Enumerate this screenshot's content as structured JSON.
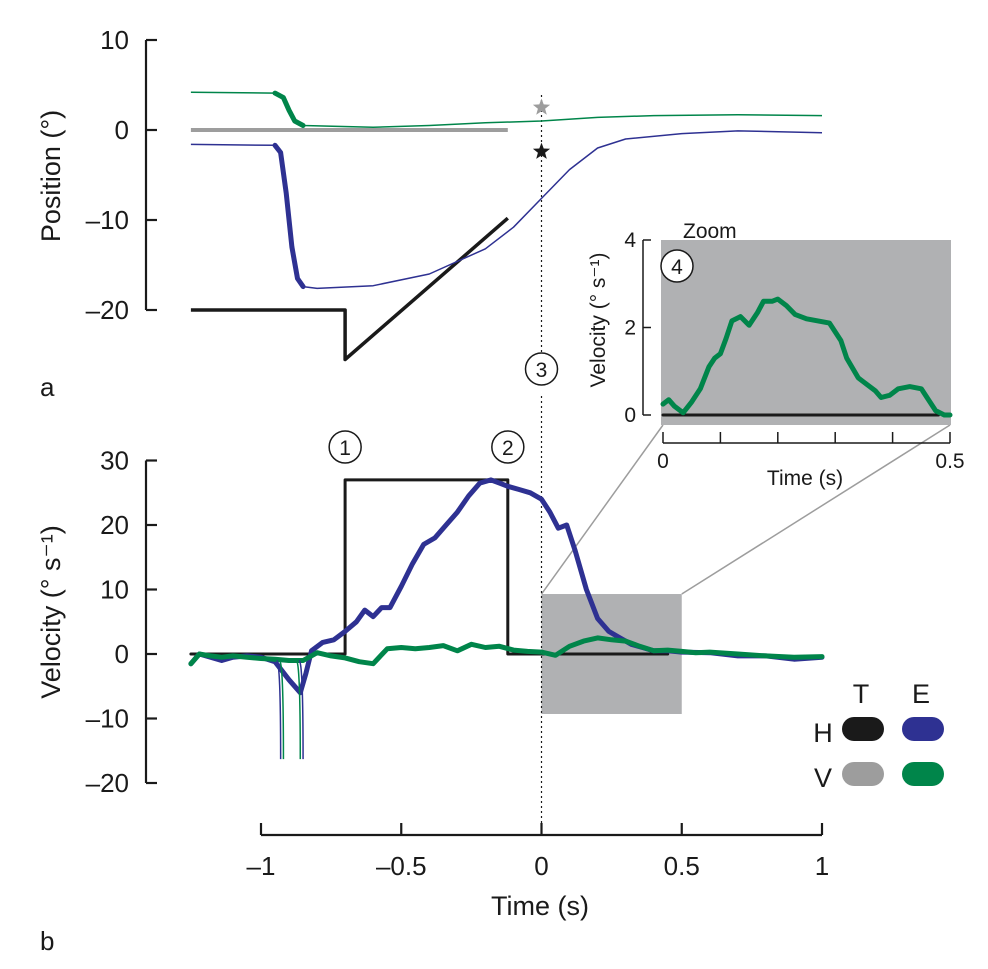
{
  "chart_data": [
    {
      "panel": "a",
      "type": "line",
      "ylabel": "Position (°)",
      "xlabel": "",
      "ylim": [
        -20,
        10
      ],
      "yticks": [
        10,
        0,
        -10,
        -20
      ],
      "ytick_labels": [
        "10",
        "0",
        "–10",
        "–20"
      ],
      "xlim": [
        -1.25,
        1.0
      ],
      "series": [
        {
          "name": "target-horizontal",
          "legend": "T-H",
          "color": "#1a1a1a",
          "x": [
            -1.25,
            -0.7,
            -0.7,
            -0.12
          ],
          "y": [
            -20,
            -20,
            -25.5,
            -9.8
          ]
        },
        {
          "name": "target-vertical",
          "legend": "T-V",
          "color": "#9d9d9d",
          "x": [
            -1.25,
            -0.12
          ],
          "y": [
            0,
            0
          ]
        },
        {
          "name": "eye-horizontal",
          "legend": "E-H",
          "color": "#2e3192",
          "x": [
            -1.25,
            -0.95,
            -0.93,
            -0.91,
            -0.89,
            -0.87,
            -0.85,
            -0.8,
            -0.6,
            -0.4,
            -0.2,
            -0.1,
            0.0,
            0.1,
            0.2,
            0.3,
            0.5,
            0.7,
            1.0
          ],
          "y": [
            -1.6,
            -1.7,
            -2.5,
            -7,
            -13,
            -16.5,
            -17.4,
            -17.6,
            -17.3,
            -16.0,
            -13.2,
            -10.8,
            -7.6,
            -4.4,
            -2.0,
            -1.0,
            -0.4,
            -0.1,
            -0.3
          ],
          "thick_range": [
            -0.95,
            -0.85
          ]
        },
        {
          "name": "eye-vertical",
          "legend": "E-V",
          "color": "#00854a",
          "x": [
            -1.25,
            -0.95,
            -0.92,
            -0.9,
            -0.88,
            -0.85,
            -0.6,
            -0.4,
            -0.2,
            0.0,
            0.2,
            0.4,
            0.7,
            1.0
          ],
          "y": [
            4.2,
            4.1,
            3.6,
            2.2,
            1.0,
            0.5,
            0.3,
            0.5,
            0.8,
            1.0,
            1.4,
            1.6,
            1.7,
            1.6
          ],
          "thick_range": [
            -0.95,
            -0.85
          ]
        }
      ],
      "markers": [
        {
          "name": "star-vertical",
          "x": 0.0,
          "y": 2.5,
          "color": "#9d9d9d"
        },
        {
          "name": "star-horizontal",
          "x": 0.0,
          "y": -2.4,
          "color": "#1a1a1a"
        }
      ],
      "panel_label": "a"
    },
    {
      "panel": "b",
      "type": "line",
      "ylabel": "Velocity (° s⁻¹)",
      "xlabel": "Time (s)",
      "ylim": [
        -20,
        30
      ],
      "yticks": [
        30,
        20,
        10,
        0,
        -10,
        -20
      ],
      "ytick_labels": [
        "30",
        "20",
        "10",
        "0",
        "–10",
        "–20"
      ],
      "xlim": [
        -1.0,
        1.0
      ],
      "xticks": [
        -1,
        -0.5,
        0,
        0.5,
        1
      ],
      "xtick_labels": [
        "–1",
        "–0.5",
        "0",
        "0.5",
        "1"
      ],
      "series": [
        {
          "name": "target-horizontal-velocity",
          "color": "#1a1a1a",
          "x": [
            -1.25,
            -0.7,
            -0.7,
            -0.12,
            -0.12,
            0.45
          ],
          "y": [
            0,
            0,
            27,
            27,
            0,
            0
          ]
        },
        {
          "name": "eye-horizontal-velocity",
          "color": "#2e3192",
          "x": [
            -1.25,
            -1.22,
            -1.18,
            -1.14,
            -1.1,
            -1.05,
            -1.0,
            -0.95,
            -0.9,
            -0.86,
            -0.84,
            -0.82,
            -0.78,
            -0.74,
            -0.7,
            -0.66,
            -0.63,
            -0.6,
            -0.57,
            -0.54,
            -0.5,
            -0.46,
            -0.42,
            -0.38,
            -0.34,
            -0.3,
            -0.26,
            -0.22,
            -0.18,
            -0.15,
            -0.12,
            -0.08,
            -0.04,
            0.0,
            0.03,
            0.06,
            0.09,
            0.12,
            0.16,
            0.2,
            0.24,
            0.28,
            0.32,
            0.36,
            0.4,
            0.45,
            0.5,
            0.6,
            0.7,
            0.8,
            0.9,
            1.0
          ],
          "y": [
            -1.5,
            0,
            -0.5,
            -1,
            -0.5,
            -0.3,
            -0.5,
            -1.2,
            -4,
            -6,
            -3,
            0.5,
            1.8,
            2.2,
            3.5,
            5,
            6.8,
            5.8,
            7.2,
            7.2,
            10.5,
            14,
            17,
            18,
            20,
            22,
            24.5,
            26.5,
            27,
            26.5,
            26,
            25.5,
            25,
            24,
            22,
            19.5,
            20,
            16,
            10,
            5.5,
            3.5,
            2.5,
            1.5,
            1.0,
            0.5,
            0.5,
            0.3,
            0.2,
            -0.3,
            -0.3,
            -0.8,
            -0.5
          ]
        },
        {
          "name": "eye-vertical-velocity",
          "color": "#00854a",
          "x": [
            -1.25,
            -1.22,
            -1.18,
            -1.14,
            -1.1,
            -1.05,
            -1.0,
            -0.95,
            -0.9,
            -0.85,
            -0.8,
            -0.75,
            -0.7,
            -0.65,
            -0.6,
            -0.55,
            -0.5,
            -0.45,
            -0.4,
            -0.35,
            -0.3,
            -0.25,
            -0.2,
            -0.15,
            -0.1,
            -0.05,
            0.0,
            0.05,
            0.1,
            0.15,
            0.2,
            0.25,
            0.3,
            0.35,
            0.4,
            0.45,
            0.5,
            0.55,
            0.6,
            0.7,
            0.8,
            0.9,
            1.0
          ],
          "y": [
            -1.5,
            0,
            -0.3,
            -0.5,
            -0.3,
            -0.5,
            -0.7,
            -0.8,
            -1.0,
            -1.0,
            0.2,
            -0.3,
            -0.6,
            -1.2,
            -1.5,
            0.8,
            1.0,
            0.8,
            1.0,
            1.3,
            0.5,
            1.5,
            1.0,
            1.2,
            0.6,
            0.4,
            0.3,
            -0.2,
            1.2,
            2.0,
            2.5,
            2.2,
            2.0,
            1.2,
            0.5,
            0.6,
            0.4,
            0.2,
            0.3,
            0.0,
            -0.3,
            -0.5,
            -0.4
          ]
        }
      ],
      "saccade_spikes": [
        {
          "name": "spike-blue-1",
          "color": "#2e3192",
          "x": -0.93,
          "y_min": -16.3
        },
        {
          "name": "spike-green-1",
          "color": "#00854a",
          "x": -0.92,
          "y_min": -16.3
        },
        {
          "name": "spike-green-2",
          "color": "#00854a",
          "x": -0.86,
          "y_min": -16.3
        },
        {
          "name": "spike-blue-2",
          "color": "#2e3192",
          "x": -0.85,
          "y_min": -16.3
        }
      ],
      "zoom_region": {
        "x_range": [
          0.0,
          0.5
        ],
        "y_range": [
          -9.3,
          9.3
        ]
      },
      "annotations": [
        {
          "label": "1",
          "x": -0.7,
          "description": "circled-1"
        },
        {
          "label": "2",
          "x": -0.12,
          "description": "circled-2"
        },
        {
          "label": "3",
          "x": 0.0,
          "description": "circled-3"
        }
      ],
      "panel_label": "b"
    },
    {
      "panel": "inset",
      "type": "line",
      "title": "Zoom",
      "ylabel": "Velocity (° s⁻¹)",
      "xlabel": "Time (s)",
      "ylim": [
        0,
        4
      ],
      "yticks": [
        4,
        2,
        0
      ],
      "ytick_labels": [
        "4",
        "2",
        "0"
      ],
      "xlim": [
        0,
        0.5
      ],
      "xticks": [
        0,
        0.1,
        0.2,
        0.3,
        0.4,
        0.5
      ],
      "xtick_labels": [
        "0",
        "",
        "",
        "",
        "",
        "0.5"
      ],
      "annotation": {
        "label": "4"
      },
      "series": [
        {
          "name": "target-velocity-zoom",
          "color": "#1a1a1a",
          "x": [
            0,
            0.48
          ],
          "y": [
            0,
            0
          ]
        },
        {
          "name": "eye-vertical-velocity-zoom",
          "color": "#00854a",
          "x": [
            0.0,
            0.01,
            0.02,
            0.035,
            0.05,
            0.065,
            0.08,
            0.09,
            0.1,
            0.11,
            0.12,
            0.135,
            0.15,
            0.165,
            0.175,
            0.19,
            0.2,
            0.215,
            0.23,
            0.25,
            0.27,
            0.29,
            0.31,
            0.32,
            0.34,
            0.35,
            0.37,
            0.38,
            0.395,
            0.41,
            0.43,
            0.45,
            0.46,
            0.475,
            0.49,
            0.5
          ],
          "y": [
            0.25,
            0.35,
            0.2,
            0.05,
            0.3,
            0.6,
            1.1,
            1.3,
            1.4,
            1.75,
            2.15,
            2.25,
            2.05,
            2.35,
            2.6,
            2.6,
            2.65,
            2.5,
            2.3,
            2.2,
            2.15,
            2.1,
            1.7,
            1.3,
            0.85,
            0.75,
            0.55,
            0.4,
            0.45,
            0.6,
            0.65,
            0.6,
            0.4,
            0.1,
            0.0,
            0.0
          ]
        }
      ]
    }
  ],
  "legend": {
    "column_headers": [
      "T",
      "E"
    ],
    "row_headers": [
      "H",
      "V"
    ],
    "entries": [
      {
        "row": "H",
        "col": "T",
        "color": "#1a1a1a"
      },
      {
        "row": "H",
        "col": "E",
        "color": "#2e3192"
      },
      {
        "row": "V",
        "col": "T",
        "color": "#9d9d9d"
      },
      {
        "row": "V",
        "col": "E",
        "color": "#00854a"
      }
    ]
  }
}
